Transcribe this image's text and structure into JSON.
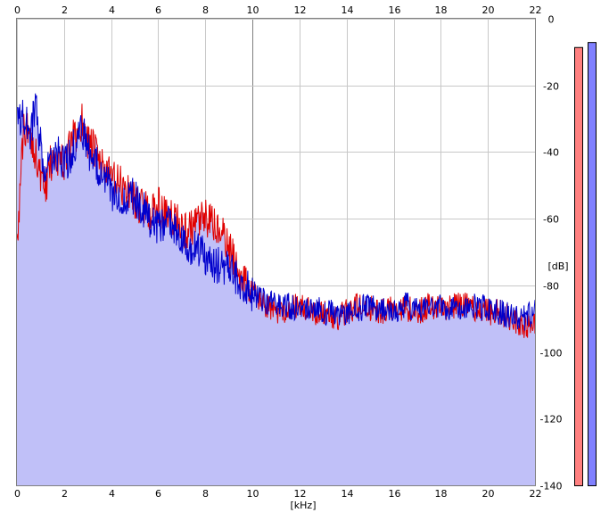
{
  "chart_data": {
    "type": "area",
    "xlabel": "[kHz]",
    "ylabel": "[dB]",
    "xlim": [
      0,
      22
    ],
    "ylim": [
      -140,
      0
    ],
    "x_ticks": [
      0,
      2,
      4,
      6,
      8,
      10,
      12,
      14,
      16,
      18,
      20,
      22
    ],
    "y_ticks": [
      0,
      -20,
      -40,
      -60,
      -80,
      -100,
      -120,
      -140
    ],
    "grid": true,
    "colors": {
      "left": "#e00000",
      "right": "#0000cc",
      "fill": "#c0c0f8",
      "grid": "#c8c8c8",
      "major_grid": "#808080"
    },
    "series": [
      {
        "color": "#e00000",
        "x": [
          0.05,
          0.3,
          0.6,
          0.8,
          1.0,
          1.2,
          1.4,
          1.6,
          1.8,
          2.0,
          2.2,
          2.4,
          2.6,
          2.8,
          3.0,
          3.3,
          3.6,
          4.0,
          4.4,
          4.8,
          5.2,
          5.6,
          6.0,
          6.4,
          6.8,
          7.2,
          7.6,
          8.0,
          8.4,
          8.8,
          9.2,
          9.6,
          10.0,
          10.5,
          11.0,
          11.5,
          12.0,
          12.5,
          13.0,
          13.5,
          14.0,
          14.5,
          15.0,
          15.5,
          16.0,
          16.5,
          17.0,
          17.5,
          18.0,
          18.5,
          19.0,
          19.5,
          20.0,
          20.5,
          21.0,
          21.5,
          22.0
        ],
        "y": [
          -62,
          -32,
          -36,
          -40,
          -48,
          -52,
          -44,
          -40,
          -42,
          -44,
          -40,
          -36,
          -34,
          -30,
          -36,
          -40,
          -44,
          -48,
          -50,
          -52,
          -56,
          -58,
          -56,
          -60,
          -60,
          -64,
          -62,
          -60,
          -62,
          -66,
          -72,
          -78,
          -82,
          -86,
          -88,
          -87,
          -86,
          -88,
          -88,
          -90,
          -88,
          -86,
          -87,
          -88,
          -86,
          -87,
          -88,
          -86,
          -87,
          -86,
          -86,
          -87,
          -88,
          -88,
          -90,
          -92,
          -92
        ]
      },
      {
        "color": "#0000cc",
        "x": [
          0.05,
          0.3,
          0.6,
          0.8,
          1.0,
          1.2,
          1.4,
          1.6,
          1.8,
          2.0,
          2.2,
          2.4,
          2.6,
          2.8,
          3.0,
          3.3,
          3.6,
          4.0,
          4.4,
          4.8,
          5.2,
          5.6,
          6.0,
          6.4,
          6.8,
          7.2,
          7.6,
          8.0,
          8.4,
          8.8,
          9.2,
          9.6,
          10.0,
          10.5,
          11.0,
          11.5,
          12.0,
          12.5,
          13.0,
          13.5,
          14.0,
          14.5,
          15.0,
          15.5,
          16.0,
          16.5,
          17.0,
          17.5,
          18.0,
          18.5,
          19.0,
          19.5,
          20.0,
          20.5,
          21.0,
          21.5,
          22.0
        ],
        "y": [
          -30,
          -30,
          -34,
          -26,
          -38,
          -48,
          -44,
          -42,
          -40,
          -44,
          -42,
          -38,
          -36,
          -34,
          -40,
          -42,
          -46,
          -52,
          -54,
          -52,
          -56,
          -60,
          -62,
          -62,
          -64,
          -70,
          -68,
          -72,
          -74,
          -74,
          -76,
          -80,
          -82,
          -85,
          -86,
          -86,
          -87,
          -86,
          -88,
          -88,
          -89,
          -87,
          -86,
          -87,
          -88,
          -86,
          -87,
          -86,
          -86,
          -87,
          -87,
          -86,
          -87,
          -88,
          -89,
          -90,
          -88
        ]
      }
    ],
    "level_meters": [
      {
        "channel": "left",
        "color": "#ff8080",
        "level_db": -8.5
      },
      {
        "channel": "right",
        "color": "#8080ff",
        "level_db": -7.0
      }
    ]
  }
}
